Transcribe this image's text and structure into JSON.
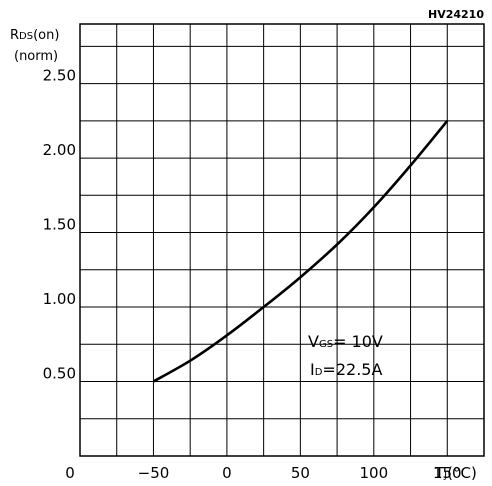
{
  "chart_data": {
    "type": "line",
    "reference": "HV24210",
    "ylabel_main": "R",
    "ylabel_sub": "DS",
    "ylabel_rest": "(on)",
    "ylabel_line2": "(norm)",
    "xlabel_main": "T",
    "xlabel_sub": "J",
    "xlabel_unit": "(°C)",
    "x_tick_labels": [
      "0",
      "−50",
      "0",
      "50",
      "100",
      "150"
    ],
    "y_tick_labels": [
      "0.50",
      "1.00",
      "1.50",
      "2.00",
      "2.50"
    ],
    "y_ticks": [
      0.5,
      1.0,
      1.5,
      2.0,
      2.5
    ],
    "xlim": [
      -100,
      175
    ],
    "ylim": [
      0.0,
      2.9
    ],
    "grid": true,
    "series": [
      {
        "x": [
          -50,
          -25,
          0,
          25,
          50,
          75,
          100,
          125,
          150
        ],
        "y": [
          0.5,
          0.64,
          0.81,
          1.0,
          1.2,
          1.42,
          1.67,
          1.95,
          2.25
        ]
      }
    ],
    "annotation": {
      "vgs_label": "V",
      "vgs_sub": "GS",
      "vgs_value": "= 10V",
      "id_label": "I",
      "id_sub": "D",
      "id_value": "=22.5A"
    }
  }
}
